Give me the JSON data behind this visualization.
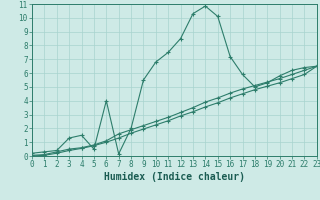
{
  "line1_x": [
    0,
    1,
    2,
    3,
    4,
    5,
    6,
    7,
    8,
    9,
    10,
    11,
    12,
    13,
    14,
    15,
    16,
    17,
    18,
    19,
    20,
    21,
    22,
    23
  ],
  "line1_y": [
    0.2,
    0.3,
    0.4,
    1.3,
    1.5,
    0.5,
    4.0,
    0.15,
    2.0,
    5.5,
    6.8,
    7.5,
    8.5,
    10.3,
    10.85,
    10.1,
    7.2,
    5.9,
    5.0,
    5.3,
    5.8,
    6.2,
    6.4,
    6.5
  ],
  "line2_x": [
    0,
    1,
    2,
    3,
    4,
    5,
    6,
    7,
    8,
    9,
    10,
    11,
    12,
    13,
    14,
    15,
    16,
    17,
    18,
    19,
    20,
    21,
    22,
    23
  ],
  "line2_y": [
    0.05,
    0.1,
    0.3,
    0.5,
    0.6,
    0.8,
    1.1,
    1.6,
    1.9,
    2.2,
    2.5,
    2.8,
    3.15,
    3.5,
    3.9,
    4.2,
    4.55,
    4.85,
    5.1,
    5.35,
    5.6,
    5.9,
    6.2,
    6.5
  ],
  "line3_x": [
    0,
    1,
    2,
    3,
    4,
    5,
    6,
    7,
    8,
    9,
    10,
    11,
    12,
    13,
    14,
    15,
    16,
    17,
    18,
    19,
    20,
    21,
    22,
    23
  ],
  "line3_y": [
    0.0,
    0.05,
    0.2,
    0.4,
    0.55,
    0.75,
    1.0,
    1.3,
    1.65,
    1.95,
    2.25,
    2.55,
    2.9,
    3.2,
    3.55,
    3.85,
    4.2,
    4.5,
    4.8,
    5.05,
    5.3,
    5.6,
    5.9,
    6.5
  ],
  "line_color": "#2d7d6b",
  "bg_color": "#ceeae6",
  "grid_color": "#a8d4cf",
  "xlabel": "Humidex (Indice chaleur)",
  "xlabel_color": "#1a5c52",
  "tick_color": "#2d7d6b",
  "ylim": [
    0,
    11
  ],
  "xlim": [
    0,
    23
  ],
  "xticks": [
    0,
    1,
    2,
    3,
    4,
    5,
    6,
    7,
    8,
    9,
    10,
    11,
    12,
    13,
    14,
    15,
    16,
    17,
    18,
    19,
    20,
    21,
    22,
    23
  ],
  "yticks": [
    0,
    1,
    2,
    3,
    4,
    5,
    6,
    7,
    8,
    9,
    10,
    11
  ],
  "marker": "+",
  "markersize": 3,
  "linewidth": 0.8,
  "xlabel_fontsize": 7,
  "tick_fontsize": 5.5
}
